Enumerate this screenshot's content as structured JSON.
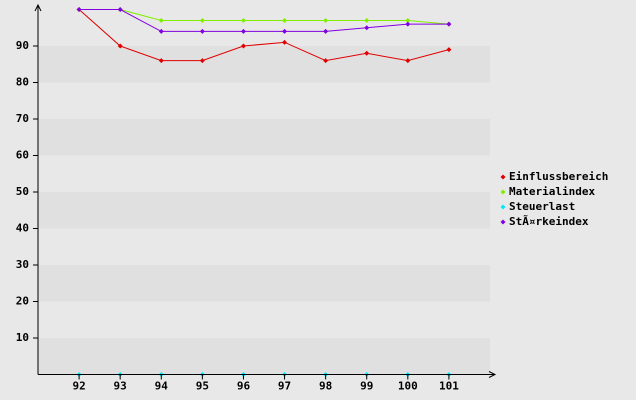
{
  "chart_data": {
    "type": "line",
    "x": [
      92,
      93,
      94,
      95,
      96,
      97,
      98,
      99,
      100,
      101
    ],
    "xlim": [
      91,
      102
    ],
    "xticks": [
      92,
      93,
      94,
      95,
      96,
      97,
      98,
      99,
      100,
      101
    ],
    "ylim": [
      0,
      100
    ],
    "yticks": [
      10,
      20,
      30,
      40,
      50,
      60,
      70,
      80,
      90
    ],
    "grid": true,
    "legend": "right",
    "series": [
      {
        "name": "Einflussbereich",
        "color": "#e00000",
        "values": [
          100,
          90,
          86,
          86,
          90,
          91,
          86,
          88,
          86,
          89
        ]
      },
      {
        "name": "Materialindex",
        "color": "#80f000",
        "values": [
          100,
          100,
          97,
          97,
          97,
          97,
          97,
          97,
          97,
          96
        ]
      },
      {
        "name": "Steuerlast",
        "color": "#00e8ff",
        "values": [
          0,
          0,
          0,
          0,
          0,
          0,
          0,
          0,
          0,
          0
        ]
      },
      {
        "name": "StÃ¤rkeindex",
        "color": "#8000e0",
        "values": [
          100,
          100,
          94,
          94,
          94,
          94,
          94,
          95,
          96,
          96
        ]
      }
    ]
  }
}
